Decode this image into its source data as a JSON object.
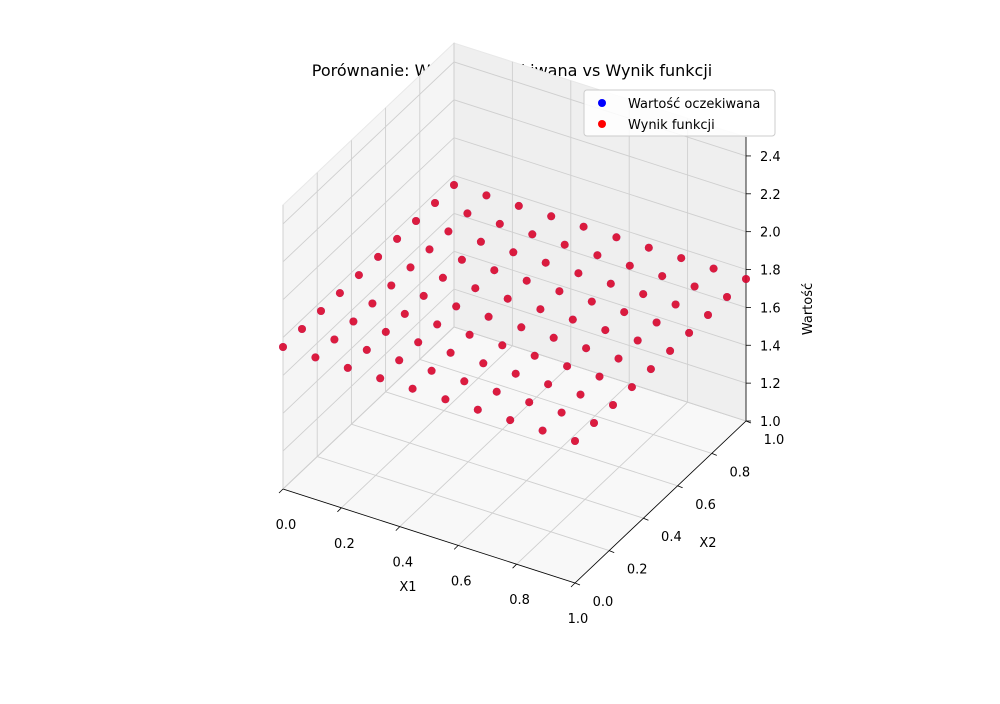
{
  "chart_data": {
    "type": "scatter",
    "projection": "3d",
    "title": "Porównanie: Wartość oczekiwana vs Wynik funkcji",
    "xlabel": "X1",
    "ylabel": "X2",
    "zlabel": "Wartość",
    "xlim": [
      0,
      1
    ],
    "ylim": [
      0,
      1
    ],
    "zlim": [
      1.0,
      2.5
    ],
    "xticks": [
      "0.0",
      "0.2",
      "0.4",
      "0.6",
      "0.8",
      "1.0"
    ],
    "yticks": [
      "0.0",
      "0.2",
      "0.4",
      "0.6",
      "0.8",
      "1.0"
    ],
    "zticks": [
      "1.0",
      "1.2",
      "1.4",
      "1.6",
      "1.8",
      "2.0",
      "2.2",
      "2.4"
    ],
    "grid": true,
    "legend_position": "top-right",
    "grid_points": [
      0.0,
      0.111,
      0.222,
      0.333,
      0.444,
      0.556,
      0.667,
      0.778,
      0.889,
      1.0
    ],
    "z_value": 1.75,
    "series": [
      {
        "name": "Wartość oczekiwana",
        "color": "#0000ff"
      },
      {
        "name": "Wynik funkcji",
        "color": "#ff0000"
      }
    ]
  }
}
